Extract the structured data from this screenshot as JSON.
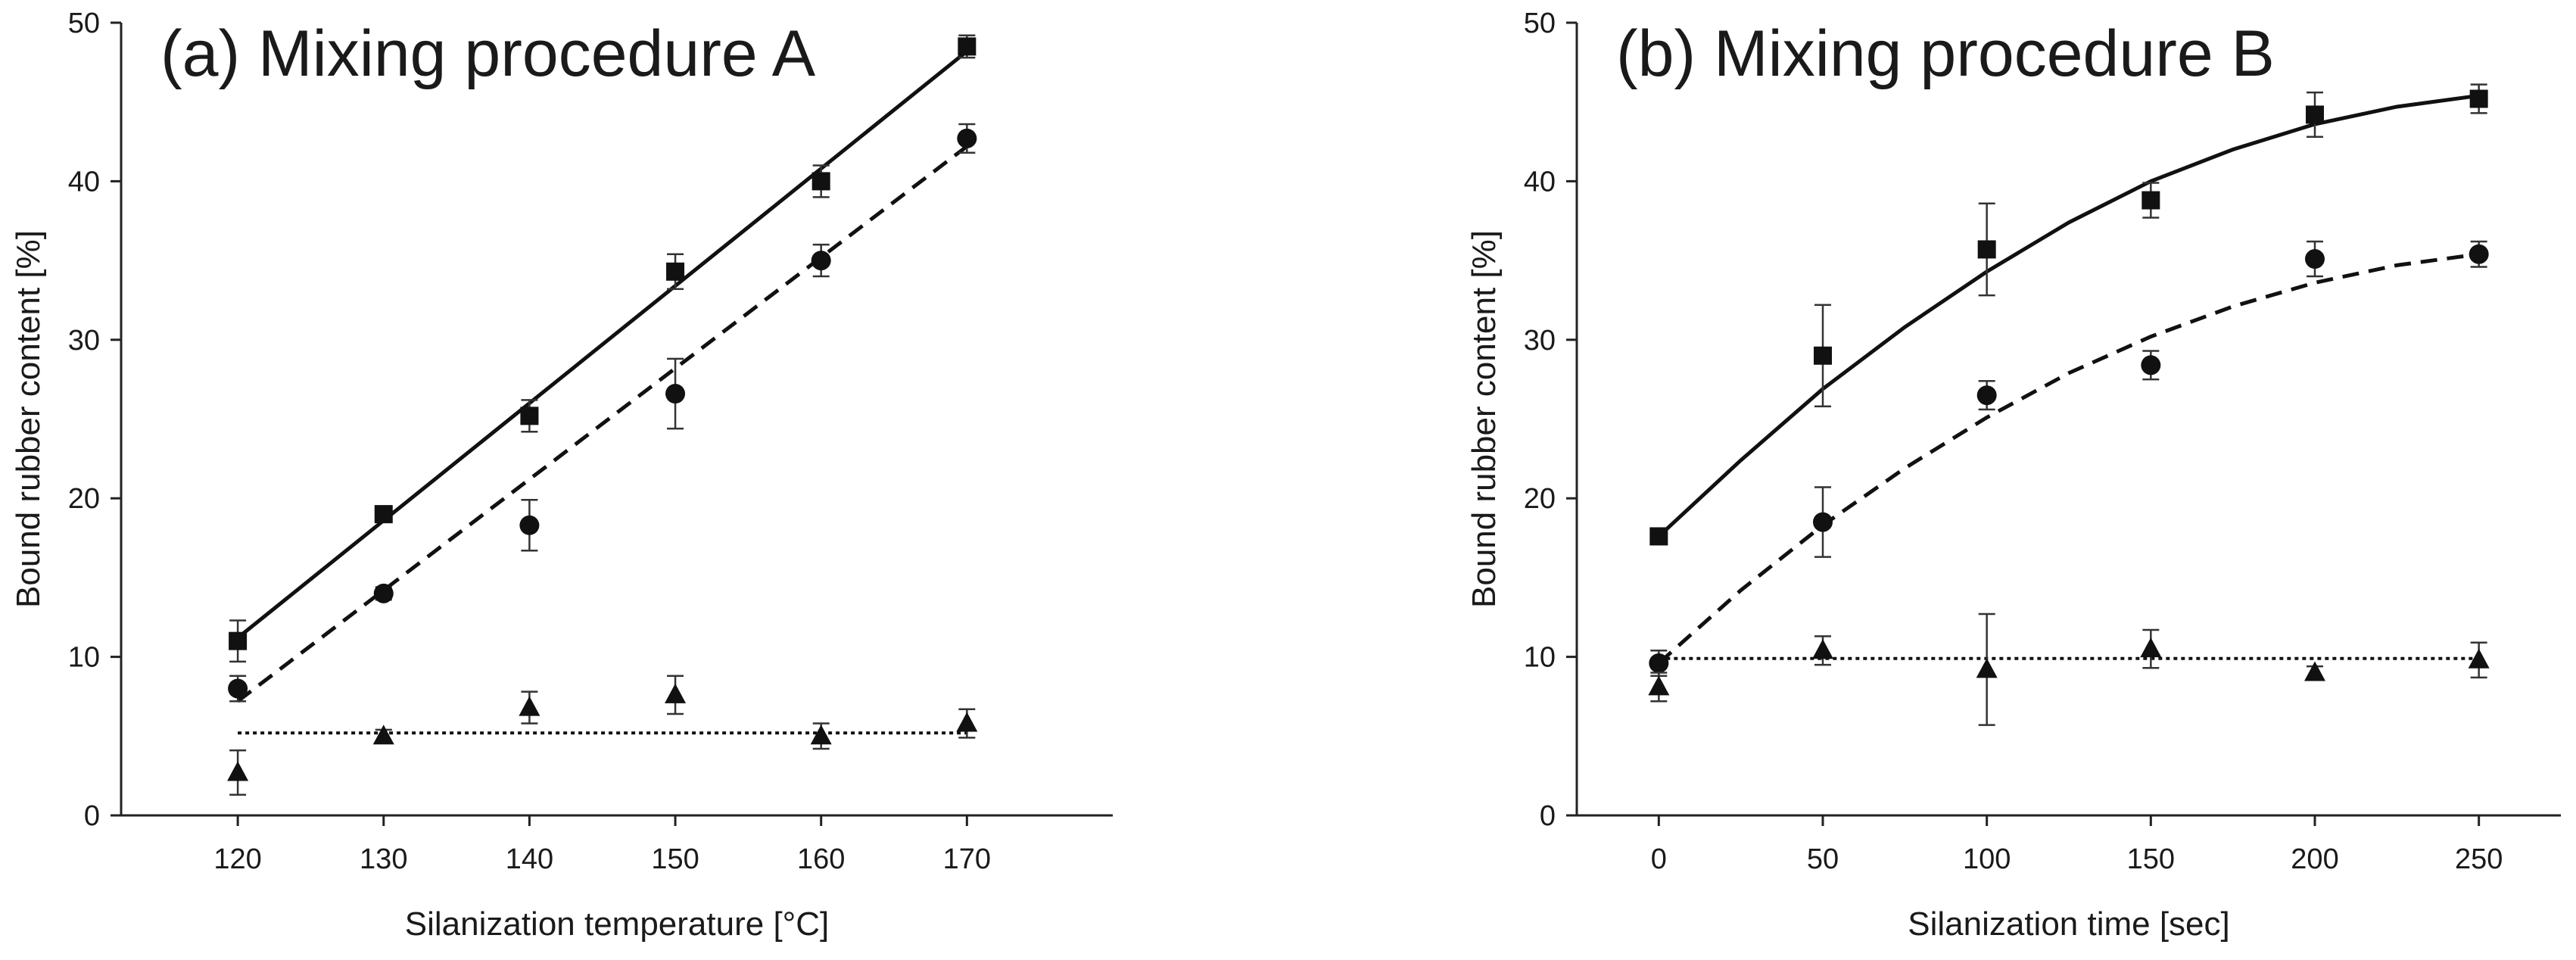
{
  "chart_data": [
    {
      "type": "scatter",
      "title": "(a) Mixing procedure A",
      "xlabel": "Silanization temperature [°C]",
      "ylabel": "Bound rubber content [%]",
      "xlim": [
        112,
        180
      ],
      "ylim": [
        0,
        50
      ],
      "xticks": [
        120,
        130,
        140,
        150,
        160,
        170
      ],
      "yticks": [
        0,
        10,
        20,
        30,
        40,
        50
      ],
      "grid": false,
      "series": [
        {
          "marker": "square",
          "line": "solid",
          "x": [
            120,
            130,
            140,
            150,
            160,
            170
          ],
          "y": [
            11,
            19,
            25.2,
            34.3,
            40,
            48.5
          ],
          "err": [
            1.3,
            0.5,
            1.0,
            1.1,
            1.0,
            0.7
          ],
          "fit": [
            [
              120,
              11.2
            ],
            [
              170,
              48.2
            ]
          ]
        },
        {
          "marker": "circle",
          "line": "dashed",
          "x": [
            120,
            130,
            140,
            150,
            160,
            170
          ],
          "y": [
            8,
            14,
            18.3,
            26.6,
            35,
            42.7
          ],
          "err": [
            0.8,
            0.4,
            1.6,
            2.2,
            1.0,
            0.9
          ],
          "fit": [
            [
              120,
              7.2
            ],
            [
              170,
              42.2
            ]
          ]
        },
        {
          "marker": "triangle",
          "line": "dotted",
          "x": [
            120,
            130,
            140,
            150,
            160,
            170
          ],
          "y": [
            2.7,
            5,
            6.8,
            7.6,
            5,
            5.8
          ],
          "err": [
            1.4,
            0.4,
            1.0,
            1.2,
            0.8,
            0.9
          ],
          "fit": [
            [
              120,
              5.2
            ],
            [
              170,
              5.2
            ]
          ]
        }
      ]
    },
    {
      "type": "scatter",
      "title": "(b) Mixing procedure B",
      "xlabel": "Silanization time [sec]",
      "ylabel": "Bound rubber content [%]",
      "xlim": [
        -25,
        275
      ],
      "ylim": [
        0,
        50
      ],
      "xticks": [
        0,
        50,
        100,
        150,
        200,
        250
      ],
      "yticks": [
        0,
        10,
        20,
        30,
        40,
        50
      ],
      "grid": false,
      "series": [
        {
          "marker": "square",
          "line": "solid",
          "x": [
            0,
            50,
            100,
            150,
            200,
            250
          ],
          "y": [
            17.6,
            29,
            35.7,
            38.8,
            44.2,
            45.2
          ],
          "err": [
            0.3,
            3.2,
            2.9,
            1.1,
            1.4,
            0.9
          ],
          "fit": [
            [
              0,
              17.6
            ],
            [
              25,
              22.4
            ],
            [
              50,
              26.9
            ],
            [
              75,
              30.8
            ],
            [
              100,
              34.3
            ],
            [
              125,
              37.4
            ],
            [
              150,
              40
            ],
            [
              175,
              42
            ],
            [
              200,
              43.6
            ],
            [
              225,
              44.7
            ],
            [
              250,
              45.4
            ]
          ]
        },
        {
          "marker": "circle",
          "line": "dashed",
          "x": [
            0,
            50,
            100,
            150,
            200,
            250
          ],
          "y": [
            9.6,
            18.5,
            26.5,
            28.4,
            35.1,
            35.4
          ],
          "err": [
            0.8,
            2.2,
            0.9,
            0.9,
            1.1,
            0.8
          ],
          "fit": [
            [
              0,
              9.6
            ],
            [
              25,
              14.2
            ],
            [
              50,
              18.3
            ],
            [
              75,
              21.9
            ],
            [
              100,
              25.1
            ],
            [
              125,
              27.9
            ],
            [
              150,
              30.2
            ],
            [
              175,
              32.1
            ],
            [
              200,
              33.6
            ],
            [
              225,
              34.7
            ],
            [
              250,
              35.4
            ]
          ]
        },
        {
          "marker": "triangle",
          "line": "dotted",
          "x": [
            0,
            50,
            100,
            150,
            200,
            250
          ],
          "y": [
            8.1,
            10.4,
            9.2,
            10.5,
            9,
            9.8
          ],
          "err": [
            0.9,
            0.9,
            3.5,
            1.2,
            0.4,
            1.1
          ],
          "fit": [
            [
              0,
              9.9
            ],
            [
              250,
              9.9
            ]
          ]
        }
      ]
    }
  ]
}
